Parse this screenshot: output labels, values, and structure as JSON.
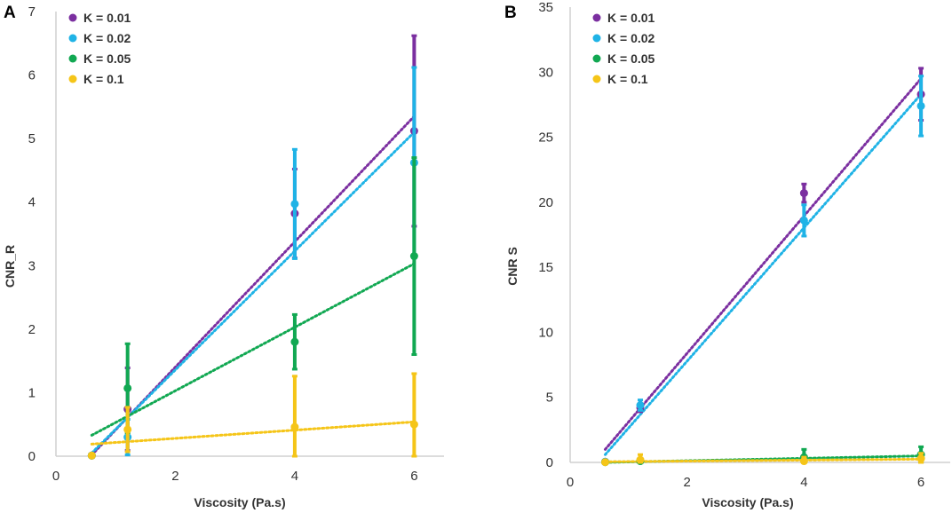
{
  "colors": {
    "axis": "#d0d0d0",
    "text": "#333333"
  },
  "chart_data": [
    {
      "type": "scatter",
      "panel_label": "A",
      "title": "",
      "xlabel": "Viscosity (Pa.s)",
      "ylabel": "CNR_R",
      "xlim": [
        0,
        6.5
      ],
      "ylim": [
        0,
        7
      ],
      "xticks": [
        0,
        2,
        4,
        6
      ],
      "xtick_labels": [
        "0",
        "2",
        "4",
        "6"
      ],
      "yticks": [
        0,
        1,
        2,
        3,
        4,
        5,
        6,
        7
      ],
      "ytick_labels": [
        "0",
        "1",
        "2",
        "3",
        "4",
        "5",
        "6",
        "7"
      ],
      "grid": false,
      "legend_position": "top-left",
      "series": [
        {
          "name": "K = 0.01",
          "color": "#7b2fa0",
          "x": [
            0.6,
            1.2,
            4,
            6
          ],
          "y": [
            0.01,
            0.74,
            3.82,
            5.12
          ],
          "err": [
            0,
            0.65,
            0.7,
            1.5
          ],
          "trend": [
            [
              0.6,
              0.02
            ],
            [
              6,
              5.35
            ]
          ]
        },
        {
          "name": "K = 0.02",
          "color": "#1fb3e6",
          "x": [
            0.6,
            1.2,
            4,
            6
          ],
          "y": [
            0.01,
            0.3,
            3.97,
            4.62
          ],
          "err": [
            0,
            0.28,
            0.86,
            1.5
          ],
          "trend": [
            [
              0.6,
              0.05
            ],
            [
              6,
              5.1
            ]
          ]
        },
        {
          "name": "K = 0.05",
          "color": "#11a852",
          "x": [
            0.6,
            1.2,
            4,
            6
          ],
          "y": [
            0.01,
            1.07,
            1.8,
            3.15
          ],
          "err": [
            0,
            0.7,
            0.43,
            1.55
          ],
          "trend": [
            [
              0.6,
              0.33
            ],
            [
              6,
              3.03
            ]
          ]
        },
        {
          "name": "K = 0.1",
          "color": "#f5c518",
          "x": [
            0.6,
            1.2,
            4,
            6
          ],
          "y": [
            0.01,
            0.42,
            0.46,
            0.5
          ],
          "err": [
            0,
            0.35,
            0.8,
            0.8
          ],
          "trend": [
            [
              0.6,
              0.19
            ],
            [
              6,
              0.54
            ]
          ]
        }
      ]
    },
    {
      "type": "scatter",
      "panel_label": "B",
      "title": "",
      "xlabel": "Viscosity (Pa.s)",
      "ylabel": "CNR S",
      "xlim": [
        0,
        6.5
      ],
      "ylim": [
        0,
        35
      ],
      "xticks": [
        0,
        2,
        4,
        6
      ],
      "xtick_labels": [
        "0",
        "2",
        "4",
        "6"
      ],
      "yticks": [
        0,
        5,
        10,
        15,
        20,
        25,
        30,
        35
      ],
      "ytick_labels": [
        "0",
        "5",
        "10",
        "15",
        "20",
        "25",
        "30",
        "35"
      ],
      "grid": false,
      "legend_position": "top-left",
      "series": [
        {
          "name": "K = 0.01",
          "color": "#7b2fa0",
          "x": [
            0.6,
            1.2,
            4,
            6
          ],
          "y": [
            0.05,
            4.2,
            20.7,
            28.3
          ],
          "err": [
            0,
            0.3,
            0.7,
            2.0
          ],
          "trend": [
            [
              0.6,
              1.0
            ],
            [
              6,
              29.5
            ]
          ]
        },
        {
          "name": "K = 0.02",
          "color": "#1fb3e6",
          "x": [
            0.6,
            1.2,
            4,
            6
          ],
          "y": [
            0.05,
            4.4,
            18.6,
            27.4
          ],
          "err": [
            0,
            0.4,
            1.2,
            2.3
          ],
          "trend": [
            [
              0.6,
              0.6
            ],
            [
              6,
              28.3
            ]
          ]
        },
        {
          "name": "K = 0.05",
          "color": "#11a852",
          "x": [
            0.6,
            1.2,
            4,
            6
          ],
          "y": [
            0.02,
            0.1,
            0.4,
            0.6
          ],
          "err": [
            0,
            0.2,
            0.6,
            0.6
          ],
          "trend": [
            [
              0.6,
              0.0
            ],
            [
              6,
              0.5
            ]
          ]
        },
        {
          "name": "K = 0.1",
          "color": "#f5c518",
          "x": [
            0.6,
            1.2,
            4,
            6
          ],
          "y": [
            0.02,
            0.2,
            0.1,
            0.3
          ],
          "err": [
            0,
            0.4,
            0.3,
            0.4
          ],
          "trend": [
            [
              0.6,
              0.05
            ],
            [
              6,
              0.25
            ]
          ]
        }
      ]
    }
  ]
}
